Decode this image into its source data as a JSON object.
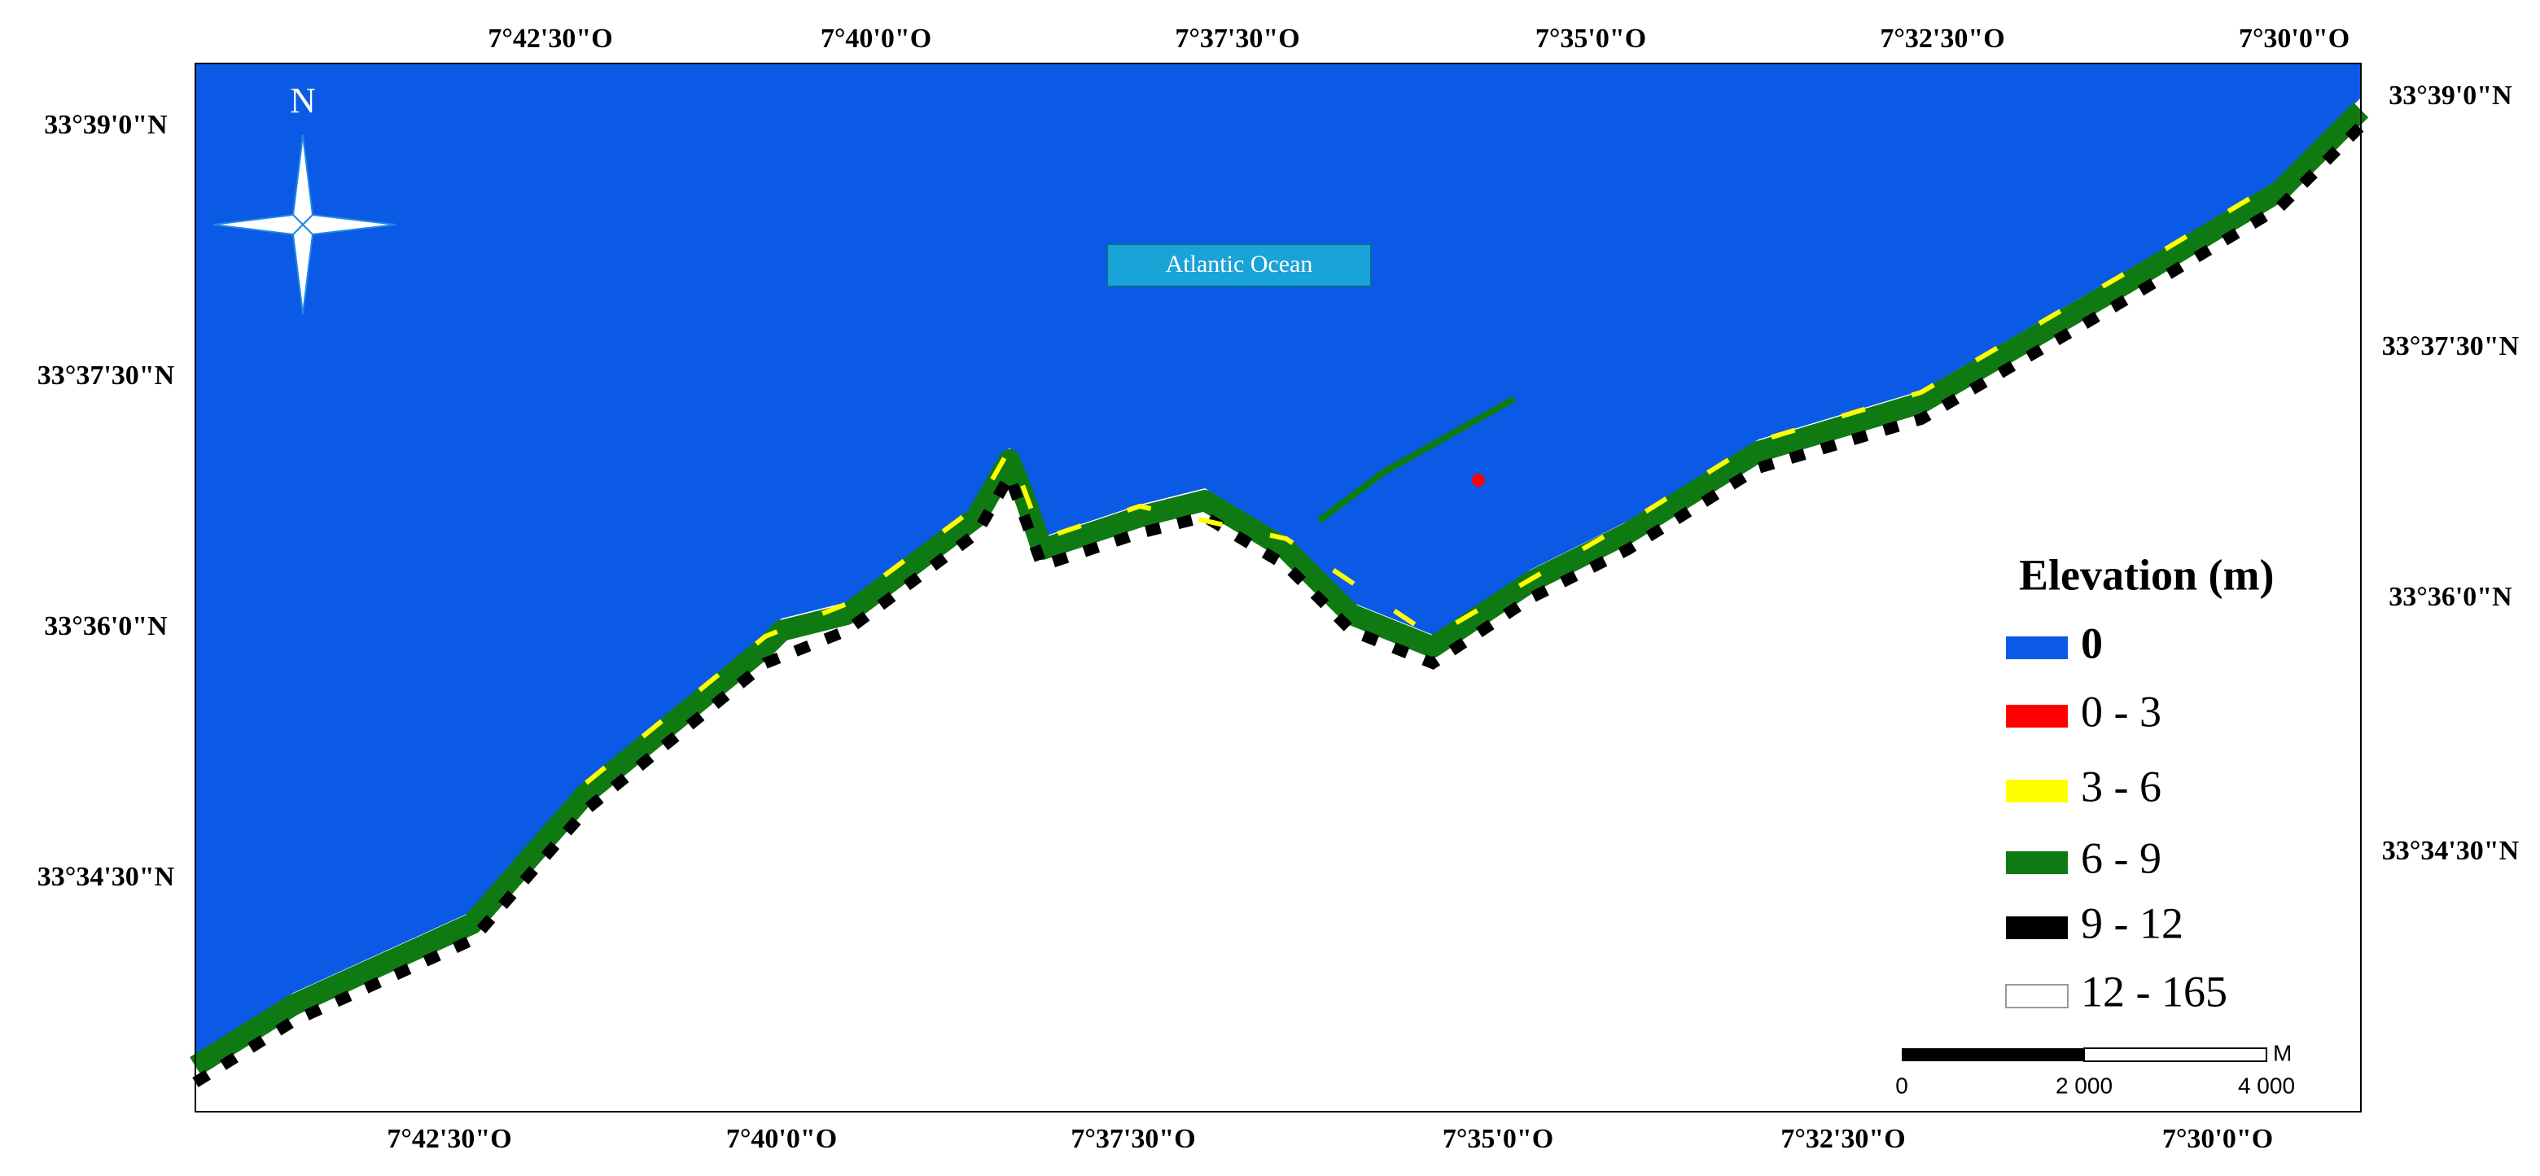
{
  "north": "N",
  "ocean_label": "Atlantic Ocean",
  "top_labels": [
    "7°42'30\"O",
    "7°40'0\"O",
    "7°37'30\"O",
    "7°35'0\"O",
    "7°32'30\"O",
    "7°30'0\"O"
  ],
  "bottom_labels": [
    "7°42'30\"O",
    "7°40'0\"O",
    "7°37'30\"O",
    "7°35'0\"O",
    "7°32'30\"O",
    "7°30'0\"O"
  ],
  "left_labels": [
    "33°39'0\"N",
    "33°37'30\"N",
    "33°36'0\"N",
    "33°34'30\"N"
  ],
  "right_labels": [
    "33°39'0\"N",
    "33°37'30\"N",
    "33°36'0\"N",
    "33°34'30\"N"
  ],
  "legend": {
    "title": "Elevation (m)",
    "items": [
      {
        "label": "0",
        "color": "#0a5ae6"
      },
      {
        "label": "0 - 3",
        "color": "#ff0000"
      },
      {
        "label": "3 - 6",
        "color": "#ffff00"
      },
      {
        "label": "6 - 9",
        "color": "#0f7a12"
      },
      {
        "label": "9 - 12",
        "color": "#000000"
      },
      {
        "label": "12 - 165",
        "color": "#ffffff"
      }
    ]
  },
  "scale": {
    "labels": [
      "0",
      "2 000",
      "4 000"
    ],
    "unit": "M"
  }
}
